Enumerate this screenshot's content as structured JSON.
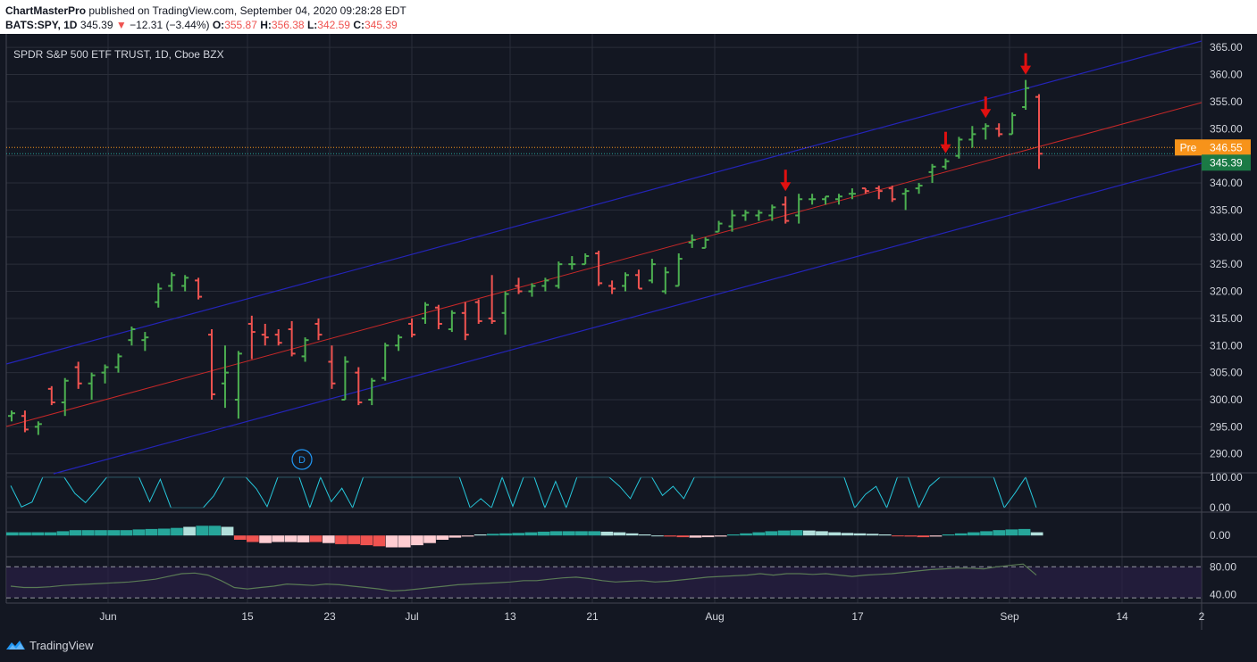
{
  "header": {
    "publisher": "ChartMasterPro",
    "published_text": "published on TradingView.com, September 04, 2020 09:28:28 EDT",
    "symbol": "BATS:SPY, 1D",
    "last": "345.39",
    "change_arrow": "▼",
    "change": "−12.31 (−3.44%)",
    "o_label": "O:",
    "o": "355.87",
    "h_label": "H:",
    "h": "356.38",
    "l_label": "L:",
    "l": "342.59",
    "c_label": "C:",
    "c": "345.39"
  },
  "footer": {
    "brand": "TradingView"
  },
  "colors": {
    "background": "#131722",
    "up": "#26a69a",
    "bar_up": "#4caf50",
    "bar_down": "#ef5350",
    "channel": "#2020c0",
    "midline": "#d32f2f",
    "grid": "#2a2e39",
    "text": "#d1d4dc",
    "pre_label": "#f7931a",
    "last_label": "#1b7a45"
  },
  "chart_data": [
    {
      "type": "ohlc",
      "title": "SPDR S&P 500 ETF TRUST, 1D, Cboe BZX",
      "x_tick_labels": [
        "Jun",
        "15",
        "23",
        "Jul",
        "13",
        "21",
        "Aug",
        "17",
        "Sep",
        "14",
        "2"
      ],
      "y_tick_labels": [
        "365.00",
        "360.00",
        "355.00",
        "350.00",
        "345.00",
        "340.00",
        "335.00",
        "330.00",
        "325.00",
        "320.00",
        "315.00",
        "310.00",
        "305.00",
        "300.00",
        "295.00",
        "290.00"
      ],
      "ylim": [
        286.5,
        367.5
      ],
      "grid": true,
      "price_labels": [
        {
          "label": "Pre",
          "value": "346.55",
          "price": 346.55
        },
        {
          "label": "",
          "value": "345.39",
          "price": 345.39
        }
      ],
      "events_label": "D",
      "annotations": [
        "down-arrow",
        "down-arrow",
        "down-arrow",
        "down-arrow"
      ],
      "bars": [
        {
          "o": 297,
          "h": 298,
          "l": 296,
          "c": 297.5
        },
        {
          "o": 297,
          "h": 298,
          "l": 294,
          "c": 294.5
        },
        {
          "o": 295,
          "h": 296,
          "l": 293.5,
          "c": 295.5
        },
        {
          "o": 302,
          "h": 302.5,
          "l": 299,
          "c": 299.5
        },
        {
          "o": 299.5,
          "h": 304,
          "l": 297,
          "c": 303.5
        },
        {
          "o": 306,
          "h": 307,
          "l": 302,
          "c": 303
        },
        {
          "o": 303,
          "h": 305,
          "l": 300,
          "c": 304.5
        },
        {
          "o": 305,
          "h": 306.5,
          "l": 303,
          "c": 306
        },
        {
          "o": 306,
          "h": 308.5,
          "l": 305,
          "c": 308
        },
        {
          "o": 311,
          "h": 313.5,
          "l": 310,
          "c": 313
        },
        {
          "o": 311,
          "h": 312.5,
          "l": 309,
          "c": 311.5
        },
        {
          "o": 318,
          "h": 321.5,
          "l": 317,
          "c": 320.5
        },
        {
          "o": 321,
          "h": 323.5,
          "l": 320,
          "c": 323
        },
        {
          "o": 321,
          "h": 323,
          "l": 320,
          "c": 322.5
        },
        {
          "o": 322,
          "h": 322.5,
          "l": 318.5,
          "c": 319
        },
        {
          "o": 312,
          "h": 313,
          "l": 300,
          "c": 301
        },
        {
          "o": 303,
          "h": 310,
          "l": 298.5,
          "c": 305
        },
        {
          "o": 300,
          "h": 309,
          "l": 296.5,
          "c": 308.5
        },
        {
          "o": 314,
          "h": 315.5,
          "l": 307.5,
          "c": 312.5
        },
        {
          "o": 312,
          "h": 314,
          "l": 310,
          "c": 311.5
        },
        {
          "o": 312,
          "h": 313,
          "l": 310,
          "c": 310.5
        },
        {
          "o": 313,
          "h": 314.5,
          "l": 308,
          "c": 308.5
        },
        {
          "o": 308,
          "h": 311.5,
          "l": 307,
          "c": 311
        },
        {
          "o": 314,
          "h": 315,
          "l": 311,
          "c": 312
        },
        {
          "o": 307,
          "h": 310,
          "l": 302,
          "c": 303
        },
        {
          "o": 300,
          "h": 308,
          "l": 300,
          "c": 307
        },
        {
          "o": 305,
          "h": 306,
          "l": 299,
          "c": 299.5
        },
        {
          "o": 300,
          "h": 304,
          "l": 299,
          "c": 303.5
        },
        {
          "o": 304,
          "h": 310.5,
          "l": 303.5,
          "c": 310
        },
        {
          "o": 310,
          "h": 312,
          "l": 309,
          "c": 311.5
        },
        {
          "o": 314,
          "h": 315,
          "l": 311.5,
          "c": 312
        },
        {
          "o": 315,
          "h": 318,
          "l": 314,
          "c": 317.5
        },
        {
          "o": 317,
          "h": 317.5,
          "l": 313,
          "c": 314
        },
        {
          "o": 313,
          "h": 316.5,
          "l": 312.5,
          "c": 316
        },
        {
          "o": 316,
          "h": 318,
          "l": 311,
          "c": 312
        },
        {
          "o": 318,
          "h": 318.5,
          "l": 314,
          "c": 314.5
        },
        {
          "o": 315,
          "h": 323,
          "l": 314,
          "c": 314.5
        },
        {
          "o": 316,
          "h": 320,
          "l": 312,
          "c": 319.5
        },
        {
          "o": 321,
          "h": 322.5,
          "l": 319.5,
          "c": 320
        },
        {
          "o": 320,
          "h": 321.5,
          "l": 319,
          "c": 321
        },
        {
          "o": 321,
          "h": 322.5,
          "l": 320,
          "c": 322
        },
        {
          "o": 321,
          "h": 325.5,
          "l": 320.5,
          "c": 325
        },
        {
          "o": 325,
          "h": 326.5,
          "l": 324,
          "c": 325
        },
        {
          "o": 325,
          "h": 327,
          "l": 325,
          "c": 326.5
        },
        {
          "o": 327,
          "h": 327.5,
          "l": 321,
          "c": 321.5
        },
        {
          "o": 321,
          "h": 322,
          "l": 319.5,
          "c": 320.5
        },
        {
          "o": 321,
          "h": 323.5,
          "l": 320,
          "c": 323
        },
        {
          "o": 323,
          "h": 324,
          "l": 320.5,
          "c": 320.5
        },
        {
          "o": 322,
          "h": 326,
          "l": 321.5,
          "c": 325
        },
        {
          "o": 320,
          "h": 324.5,
          "l": 319.5,
          "c": 323.5
        },
        {
          "o": 321,
          "h": 327,
          "l": 321,
          "c": 326
        },
        {
          "o": 329,
          "h": 330.5,
          "l": 328,
          "c": 329.5
        },
        {
          "o": 328,
          "h": 330,
          "l": 328,
          "c": 329.5
        },
        {
          "o": 331,
          "h": 333,
          "l": 331,
          "c": 332.5
        },
        {
          "o": 332,
          "h": 335,
          "l": 331,
          "c": 334
        },
        {
          "o": 334,
          "h": 335,
          "l": 333,
          "c": 334.5
        },
        {
          "o": 334,
          "h": 335,
          "l": 333,
          "c": 334.5
        },
        {
          "o": 334,
          "h": 336,
          "l": 333,
          "c": 335.5
        },
        {
          "o": 336,
          "h": 337.5,
          "l": 332.5,
          "c": 333
        },
        {
          "o": 334,
          "h": 338,
          "l": 332.5,
          "c": 337
        },
        {
          "o": 337,
          "h": 338,
          "l": 336,
          "c": 337
        },
        {
          "o": 337,
          "h": 337.5,
          "l": 336,
          "c": 337.5
        },
        {
          "o": 337,
          "h": 338,
          "l": 336,
          "c": 337.5
        },
        {
          "o": 338,
          "h": 339,
          "l": 337,
          "c": 338
        },
        {
          "o": 339,
          "h": 339,
          "l": 338,
          "c": 338.5
        },
        {
          "o": 339,
          "h": 339.5,
          "l": 337,
          "c": 338.5
        },
        {
          "o": 339,
          "h": 339.5,
          "l": 336.5,
          "c": 337
        },
        {
          "o": 338,
          "h": 339,
          "l": 335,
          "c": 338.5
        },
        {
          "o": 339,
          "h": 340,
          "l": 338,
          "c": 339.5
        },
        {
          "o": 342,
          "h": 343.5,
          "l": 340,
          "c": 343
        },
        {
          "o": 343,
          "h": 344.5,
          "l": 342.5,
          "c": 344
        },
        {
          "o": 345,
          "h": 348.5,
          "l": 344.5,
          "c": 348
        },
        {
          "o": 348,
          "h": 350.5,
          "l": 346.5,
          "c": 349
        },
        {
          "o": 350,
          "h": 351,
          "l": 348,
          "c": 350.5
        },
        {
          "o": 350,
          "h": 351,
          "l": 348.5,
          "c": 349
        },
        {
          "o": 349,
          "h": 353,
          "l": 349,
          "c": 352.5
        },
        {
          "o": 354,
          "h": 359,
          "l": 353.5,
          "c": 357.5
        },
        {
          "o": 355.87,
          "h": 356.38,
          "l": 342.59,
          "c": 345.39
        }
      ]
    },
    {
      "type": "line",
      "name": "indicator-1",
      "y_tick_labels": [
        "100.00",
        "0.00"
      ],
      "ylim": [
        -8,
        108
      ],
      "values": [
        72,
        3,
        19,
        100,
        100,
        100,
        47,
        17,
        57,
        100,
        100,
        100,
        100,
        20,
        93,
        0,
        0,
        0,
        0,
        39,
        100,
        100,
        100,
        62,
        4,
        100,
        100,
        100,
        0,
        100,
        20,
        64,
        0,
        100,
        100,
        100,
        100,
        100,
        100,
        100,
        100,
        100,
        100,
        0,
        30,
        0,
        100,
        5,
        100,
        100,
        0,
        86,
        0,
        100,
        100,
        100,
        100,
        70,
        30,
        100,
        100,
        40,
        70,
        30,
        100,
        100,
        100,
        100,
        100,
        100,
        100,
        100,
        100,
        100,
        100,
        100,
        100,
        100,
        100,
        0,
        44,
        70,
        0,
        100,
        100,
        0,
        70,
        100,
        100,
        100,
        100,
        100,
        100,
        0,
        48,
        100,
        0
      ]
    },
    {
      "type": "bar",
      "name": "indicator-2",
      "y_tick_labels": [
        "0.00"
      ],
      "ylim": [
        -9,
        10
      ],
      "values": [
        1.5,
        1.5,
        1.5,
        1.5,
        2,
        2.5,
        2.5,
        2.5,
        2.5,
        2.5,
        2.8,
        3,
        3.2,
        3.5,
        4,
        4.5,
        4.5,
        4,
        -2,
        -3,
        -3.5,
        -3,
        -3,
        -3.2,
        -3,
        -3.5,
        -4,
        -4,
        -4.5,
        -5,
        -5.5,
        -5.5,
        -4.5,
        -3.5,
        -2,
        -1,
        -0.5,
        0.5,
        0.8,
        1,
        1.2,
        1.5,
        1.8,
        2,
        2,
        2,
        2,
        1.8,
        1.5,
        1,
        0.5,
        0,
        -0.5,
        -0.8,
        -1,
        -0.8,
        -0.5,
        0.5,
        1,
        1.5,
        2,
        2.3,
        2.5,
        2.3,
        2,
        1.5,
        1.2,
        1,
        0.8,
        0.5,
        0,
        -0.5,
        -0.8,
        -0.5,
        0.5,
        1,
        1.5,
        2,
        2.5,
        2.8,
        3,
        1.5
      ],
      "colors": [
        "#26a69a",
        "#26a69a",
        "#26a69a",
        "#26a69a",
        "#26a69a",
        "#26a69a",
        "#26a69a",
        "#26a69a",
        "#26a69a",
        "#26a69a",
        "#26a69a",
        "#26a69a",
        "#26a69a",
        "#26a69a",
        "#b2dfdb",
        "#26a69a",
        "#26a69a",
        "#b2dfdb",
        "#ef5350",
        "#ef5350",
        "#ffcdd2",
        "#ffcdd2",
        "#ffcdd2",
        "#ffcdd2",
        "#ef5350",
        "#ffcdd2",
        "#ef5350",
        "#ef5350",
        "#ef5350",
        "#ef5350",
        "#ffcdd2",
        "#ffcdd2",
        "#ffcdd2",
        "#ffcdd2",
        "#ffcdd2",
        "#ffcdd2",
        "#ffcdd2",
        "#b2dfdb",
        "#26a69a",
        "#26a69a",
        "#26a69a",
        "#26a69a",
        "#26a69a",
        "#26a69a",
        "#26a69a",
        "#26a69a",
        "#26a69a",
        "#b2dfdb",
        "#b2dfdb",
        "#b2dfdb",
        "#b2dfdb",
        "#b2dfdb",
        "#ef5350",
        "#ef5350",
        "#ffcdd2",
        "#ffcdd2",
        "#ffcdd2",
        "#26a69a",
        "#26a69a",
        "#26a69a",
        "#26a69a",
        "#26a69a",
        "#26a69a",
        "#b2dfdb",
        "#b2dfdb",
        "#b2dfdb",
        "#b2dfdb",
        "#b2dfdb",
        "#b2dfdb",
        "#b2dfdb",
        "#ef5350",
        "#ef5350",
        "#ef5350",
        "#ffcdd2",
        "#26a69a",
        "#26a69a",
        "#26a69a",
        "#26a69a",
        "#26a69a",
        "#26a69a",
        "#26a69a",
        "#b2dfdb"
      ]
    },
    {
      "type": "line",
      "name": "indicator-3",
      "y_tick_labels": [
        "80.00",
        "40.00"
      ],
      "ylim": [
        30,
        92
      ],
      "band": [
        35,
        80
      ],
      "values": [
        52,
        50,
        50,
        51,
        53,
        54,
        55,
        56,
        57,
        58,
        60,
        62,
        66,
        70,
        71,
        68,
        60,
        50,
        48,
        50,
        52,
        55,
        54,
        53,
        55,
        54,
        52,
        50,
        48,
        45,
        46,
        48,
        50,
        52,
        54,
        55,
        56,
        57,
        58,
        60,
        60,
        62,
        64,
        65,
        63,
        60,
        58,
        59,
        60,
        58,
        59,
        61,
        63,
        65,
        66,
        67,
        68,
        70,
        68,
        70,
        70,
        69,
        70,
        68,
        66,
        68,
        69,
        70,
        72,
        74,
        76,
        77,
        78,
        78,
        77,
        80,
        82,
        84,
        68
      ]
    }
  ]
}
